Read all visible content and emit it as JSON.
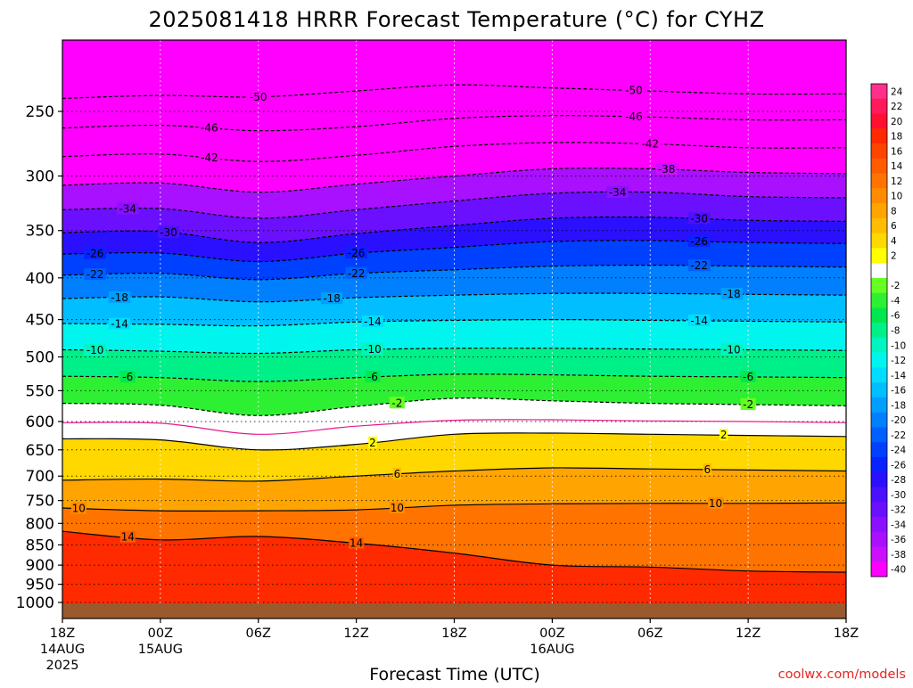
{
  "chart_data": {
    "type": "heatmap",
    "title": "2025081418 HRRR Forecast Temperature (°C) for CYHZ",
    "xlabel": "Forecast Time (UTC)",
    "ylabel": "",
    "credit": "coolwx.com/models",
    "y_axis": {
      "scale": "log-pressure",
      "reversed": true,
      "range_hPa": [
        1050,
        200
      ],
      "ticks": [
        250,
        300,
        350,
        400,
        450,
        500,
        550,
        600,
        650,
        700,
        750,
        800,
        850,
        900,
        950,
        1000
      ],
      "tick_labels": [
        "250",
        "300",
        "350",
        "400",
        "450",
        "500",
        "550",
        "600",
        "650",
        "700",
        "750",
        "800",
        "850",
        "900",
        "950",
        "1000"
      ]
    },
    "x_axis": {
      "range_hours": [
        0,
        48
      ],
      "ticks_hours": [
        0,
        6,
        12,
        18,
        24,
        30,
        36,
        42,
        48
      ],
      "tick_labels": [
        [
          "18Z",
          "14AUG",
          "2025"
        ],
        [
          "00Z",
          "15AUG"
        ],
        [
          "06Z"
        ],
        [
          "12Z"
        ],
        [
          "18Z"
        ],
        [
          "00Z",
          "16AUG"
        ],
        [
          "06Z"
        ],
        [
          "12Z"
        ],
        [
          "18Z"
        ]
      ]
    },
    "grid": true,
    "colorbar": {
      "placement": "right",
      "bins": [
        {
          "label": "24",
          "color": "#ff2f8c"
        },
        {
          "label": "22",
          "color": "#ff1a5e"
        },
        {
          "label": "20",
          "color": "#ff1030"
        },
        {
          "label": "18",
          "color": "#ff2a00"
        },
        {
          "label": "16",
          "color": "#ff4400"
        },
        {
          "label": "14",
          "color": "#ff5c00"
        },
        {
          "label": "12",
          "color": "#ff7400"
        },
        {
          "label": "10",
          "color": "#ff8c00"
        },
        {
          "label": "8",
          "color": "#ffa400"
        },
        {
          "label": "6",
          "color": "#ffbc00"
        },
        {
          "label": "4",
          "color": "#ffd800"
        },
        {
          "label": "2",
          "color": "#ffff00"
        },
        {
          "label": "",
          "color": "#ffffff"
        },
        {
          "label": "-2",
          "color": "#66ff22"
        },
        {
          "label": "-4",
          "color": "#2ef033"
        },
        {
          "label": "-6",
          "color": "#00e84e"
        },
        {
          "label": "-8",
          "color": "#00f088"
        },
        {
          "label": "-10",
          "color": "#00f5c0"
        },
        {
          "label": "-12",
          "color": "#00f5ee"
        },
        {
          "label": "-14",
          "color": "#00ddff"
        },
        {
          "label": "-16",
          "color": "#00beff"
        },
        {
          "label": "-18",
          "color": "#009fff"
        },
        {
          "label": "-20",
          "color": "#0080ff"
        },
        {
          "label": "-22",
          "color": "#0060ff"
        },
        {
          "label": "-24",
          "color": "#0040ff"
        },
        {
          "label": "-26",
          "color": "#0a22ff"
        },
        {
          "label": "-28",
          "color": "#2a10ff"
        },
        {
          "label": "-30",
          "color": "#4a10ff"
        },
        {
          "label": "-32",
          "color": "#6a10ff"
        },
        {
          "label": "-34",
          "color": "#8a10ff"
        },
        {
          "label": "-36",
          "color": "#a810ff"
        },
        {
          "label": "-38",
          "color": "#cc10ff"
        },
        {
          "label": "-40",
          "color": "#ff00ff"
        }
      ]
    },
    "ground_color": "#9a5a2e",
    "freezing_line_color": "#e8178c",
    "contours": [
      {
        "value": -50,
        "labels": [
          "-50",
          "-50"
        ],
        "dashed": true,
        "pressure": [
          241,
          239,
          240,
          236,
          232,
          234,
          236,
          238,
          238
        ]
      },
      {
        "value": -46,
        "labels": [
          "-46",
          "-46"
        ],
        "dashed": true,
        "pressure": [
          262,
          260,
          264,
          261,
          255,
          253,
          254,
          256,
          256
        ]
      },
      {
        "value": -42,
        "labels": [
          "-42",
          "-42"
        ],
        "dashed": true,
        "pressure": [
          284,
          282,
          288,
          283,
          276,
          273,
          274,
          277,
          277
        ]
      },
      {
        "value": -38,
        "labels": [
          "-38"
        ],
        "dashed": true,
        "pressure": [
          308,
          306,
          314,
          307,
          300,
          294,
          294,
          297,
          298
        ]
      },
      {
        "value": -34,
        "labels": [
          "-34",
          "-34"
        ],
        "dashed": true,
        "pressure": [
          330,
          329,
          338,
          330,
          322,
          315,
          314,
          318,
          319
        ]
      },
      {
        "value": -30,
        "labels": [
          "-30",
          "-30"
        ],
        "dashed": true,
        "pressure": [
          352,
          351,
          362,
          353,
          345,
          338,
          337,
          340,
          341
        ]
      },
      {
        "value": -26,
        "labels": [
          "-26",
          "-26",
          "-26"
        ],
        "dashed": true,
        "pressure": [
          374,
          373,
          382,
          373,
          367,
          361,
          360,
          362,
          363
        ]
      },
      {
        "value": -22,
        "labels": [
          "-22",
          "-22",
          "-22"
        ],
        "dashed": true,
        "pressure": [
          397,
          395,
          402,
          395,
          391,
          387,
          386,
          387,
          388
        ]
      },
      {
        "value": -18,
        "labels": [
          "-18",
          "-18",
          "-18"
        ],
        "dashed": true,
        "pressure": [
          424,
          422,
          428,
          423,
          420,
          418,
          418,
          419,
          420
        ]
      },
      {
        "value": -14,
        "labels": [
          "-14",
          "-14",
          "-14"
        ],
        "dashed": true,
        "pressure": [
          455,
          456,
          458,
          453,
          451,
          450,
          451,
          452,
          453
        ]
      },
      {
        "value": -10,
        "labels": [
          "-10",
          "-10",
          "-10"
        ],
        "dashed": true,
        "pressure": [
          490,
          492,
          495,
          490,
          488,
          488,
          489,
          490,
          491
        ]
      },
      {
        "value": -6,
        "labels": [
          "-6",
          "-6",
          "-6"
        ],
        "dashed": true,
        "pressure": [
          528,
          530,
          536,
          530,
          525,
          526,
          528,
          529,
          530
        ]
      },
      {
        "value": -2,
        "labels": [
          "-2",
          "-2",
          "-2"
        ],
        "dashed": true,
        "pressure": [
          570,
          573,
          590,
          575,
          562,
          566,
          570,
          572,
          574
        ]
      },
      {
        "value": 0,
        "labels": [],
        "dashed": false,
        "pressure": [
          602,
          603,
          622,
          608,
          598,
          597,
          599,
          600,
          602
        ]
      },
      {
        "value": 2,
        "labels": [
          "2",
          "2",
          "2"
        ],
        "dashed": false,
        "pressure": [
          630,
          632,
          650,
          640,
          622,
          620,
          622,
          624,
          626
        ]
      },
      {
        "value": 6,
        "labels": [
          "6",
          "6",
          "6"
        ],
        "dashed": false,
        "pressure": [
          708,
          706,
          710,
          700,
          690,
          684,
          686,
          688,
          690
        ]
      },
      {
        "value": 10,
        "labels": [
          "10",
          "10",
          "10"
        ],
        "dashed": false,
        "pressure": [
          766,
          772,
          772,
          770,
          760,
          757,
          756,
          756,
          755
        ]
      },
      {
        "value": 14,
        "labels": [
          "14",
          "14"
        ],
        "dashed": false,
        "pressure": [
          818,
          838,
          830,
          846,
          870,
          900,
          905,
          915,
          918
        ]
      }
    ],
    "label_positions": [
      {
        "value": -50,
        "label": "-50",
        "hour": [
          12,
          35
        ]
      },
      {
        "value": -46,
        "label": "-46",
        "hour": [
          9,
          35
        ]
      },
      {
        "value": -42,
        "label": "-42",
        "hour": [
          9,
          36
        ]
      },
      {
        "value": -38,
        "label": "-38",
        "hour": [
          37
        ]
      },
      {
        "value": -34,
        "label": "-34",
        "hour": [
          4,
          34
        ]
      },
      {
        "value": -30,
        "label": "-30",
        "hour": [
          6.5,
          39
        ]
      },
      {
        "value": -26,
        "label": "-26",
        "hour": [
          2,
          18,
          39
        ]
      },
      {
        "value": -22,
        "label": "-22",
        "hour": [
          2,
          18,
          39
        ]
      },
      {
        "value": -18,
        "label": "-18",
        "hour": [
          3.5,
          16.5,
          41
        ]
      },
      {
        "value": -14,
        "label": "-14",
        "hour": [
          3.5,
          19,
          39
        ]
      },
      {
        "value": -10,
        "label": "-10",
        "hour": [
          2,
          19,
          41
        ]
      },
      {
        "value": -6,
        "label": "-6",
        "hour": [
          4,
          19,
          42
        ]
      },
      {
        "value": -2,
        "label": "-2",
        "hour": [
          -1.2,
          20.5,
          42
        ]
      },
      {
        "value": 2,
        "label": "2",
        "hour": [
          -1.5,
          19,
          40.5
        ]
      },
      {
        "value": 6,
        "label": "6",
        "hour": [
          -1.8,
          20.5,
          39.5
        ]
      },
      {
        "value": 10,
        "label": "10",
        "hour": [
          1,
          20.5,
          40
        ]
      },
      {
        "value": 14,
        "label": "14",
        "hour": [
          4,
          18
        ]
      }
    ]
  }
}
